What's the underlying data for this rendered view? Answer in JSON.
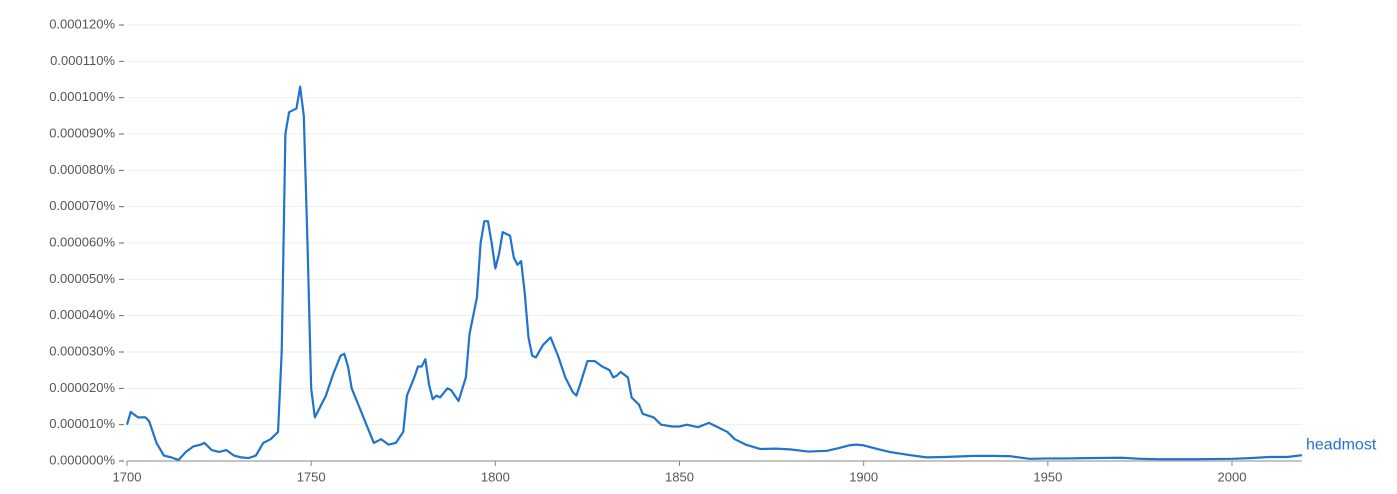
{
  "chart_data": {
    "type": "line",
    "x": [
      1700,
      1701,
      1703,
      1705,
      1706,
      1708,
      1710,
      1712,
      1714,
      1716,
      1718,
      1720,
      1721,
      1723,
      1725,
      1727,
      1729,
      1731,
      1733,
      1735,
      1737,
      1739,
      1741,
      1742,
      1743,
      1744,
      1746,
      1747,
      1748,
      1749,
      1750,
      1751,
      1752,
      1754,
      1756,
      1758,
      1759,
      1760,
      1761,
      1763,
      1765,
      1767,
      1769,
      1771,
      1773,
      1775,
      1776,
      1778,
      1779,
      1780,
      1781,
      1782,
      1783,
      1784,
      1785,
      1787,
      1788,
      1790,
      1792,
      1793,
      1795,
      1796,
      1797,
      1798,
      1799,
      1800,
      1801,
      1802,
      1804,
      1805,
      1806,
      1807,
      1808,
      1809,
      1810,
      1811,
      1813,
      1815,
      1817,
      1819,
      1821,
      1822,
      1823,
      1825,
      1827,
      1829,
      1831,
      1832,
      1833,
      1834,
      1836,
      1837,
      1839,
      1840,
      1843,
      1845,
      1848,
      1850,
      1852,
      1855,
      1858,
      1860,
      1863,
      1865,
      1868,
      1872,
      1876,
      1880,
      1885,
      1890,
      1893,
      1896,
      1898,
      1900,
      1903,
      1907,
      1912,
      1917,
      1922,
      1930,
      1935,
      1940,
      1945,
      1950,
      1955,
      1960,
      1970,
      1975,
      1980,
      1990,
      2000,
      2005,
      2010,
      2015,
      2019
    ],
    "series": [
      {
        "name": "headmost",
        "color": "#1f74cc",
        "values": [
          1e-05,
          1.35e-05,
          1.2e-05,
          1.2e-05,
          1.1e-05,
          5e-06,
          1.5e-06,
          1e-06,
          3e-07,
          2.5e-06,
          4e-06,
          4.5e-06,
          5e-06,
          3e-06,
          2.5e-06,
          3e-06,
          1.5e-06,
          1e-06,
          8e-07,
          1.5e-06,
          5e-06,
          6e-06,
          8e-06,
          3e-05,
          9e-05,
          9.6e-05,
          9.7e-05,
          0.000103,
          9.5e-05,
          6e-05,
          2e-05,
          1.2e-05,
          1.4e-05,
          1.8e-05,
          2.4e-05,
          2.9e-05,
          2.95e-05,
          2.6e-05,
          2e-05,
          1.5e-05,
          1e-05,
          5e-06,
          6e-06,
          4.5e-06,
          5e-06,
          8e-06,
          1.8e-05,
          2.3e-05,
          2.6e-05,
          2.6e-05,
          2.8e-05,
          2.1e-05,
          1.7e-05,
          1.8e-05,
          1.75e-05,
          2e-05,
          1.95e-05,
          1.65e-05,
          2.3e-05,
          3.5e-05,
          4.5e-05,
          6e-05,
          6.6e-05,
          6.6e-05,
          6e-05,
          5.3e-05,
          5.7e-05,
          6.3e-05,
          6.2e-05,
          5.6e-05,
          5.4e-05,
          5.5e-05,
          4.6e-05,
          3.4e-05,
          2.9e-05,
          2.85e-05,
          3.2e-05,
          3.4e-05,
          2.9e-05,
          2.3e-05,
          1.9e-05,
          1.8e-05,
          2.1e-05,
          2.75e-05,
          2.75e-05,
          2.6e-05,
          2.5e-05,
          2.3e-05,
          2.35e-05,
          2.45e-05,
          2.3e-05,
          1.75e-05,
          1.55e-05,
          1.3e-05,
          1.2e-05,
          1e-05,
          9.5e-06,
          9.5e-06,
          1e-05,
          9.3e-06,
          1.05e-05,
          9.5e-06,
          8e-06,
          6e-06,
          4.5e-06,
          3.3e-06,
          3.4e-06,
          3.2e-06,
          2.6e-06,
          2.8e-06,
          3.5e-06,
          4.3e-06,
          4.5e-06,
          4.3e-06,
          3.5e-06,
          2.5e-06,
          1.7e-06,
          1e-06,
          1.1e-06,
          1.4e-06,
          1.4e-06,
          1.3e-06,
          6e-07,
          7e-07,
          7e-07,
          8e-07,
          9e-07,
          6e-07,
          5e-07,
          5e-07,
          6e-07,
          8e-07,
          1.1e-06,
          1.1e-06,
          1.6e-06
        ]
      }
    ],
    "xlim": [
      1700,
      2019
    ],
    "xticks": [
      1700,
      1750,
      1800,
      1850,
      1900,
      1950,
      2000
    ],
    "ylim": [
      0,
      0.00012
    ],
    "yticks": [
      {
        "value": 0,
        "label": "0.000000%"
      },
      {
        "value": 1e-05,
        "label": "0.000010%"
      },
      {
        "value": 2e-05,
        "label": "0.000020%"
      },
      {
        "value": 3e-05,
        "label": "0.000030%"
      },
      {
        "value": 4e-05,
        "label": "0.000040%"
      },
      {
        "value": 5e-05,
        "label": "0.000050%"
      },
      {
        "value": 6e-05,
        "label": "0.000060%"
      },
      {
        "value": 7e-05,
        "label": "0.000070%"
      },
      {
        "value": 8e-05,
        "label": "0.000080%"
      },
      {
        "value": 9e-05,
        "label": "0.000090%"
      },
      {
        "value": 0.0001,
        "label": "0.000100%"
      },
      {
        "value": 0.00011,
        "label": "0.000110%"
      },
      {
        "value": 0.00012,
        "label": "0.000120%"
      }
    ],
    "grid": true
  }
}
